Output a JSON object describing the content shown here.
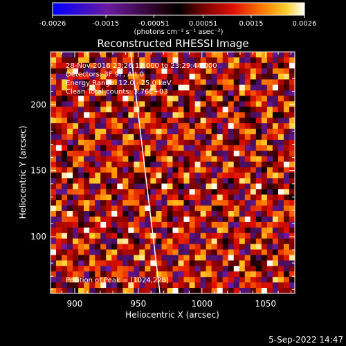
{
  "chart_data": {
    "type": "heatmap",
    "title": "Reconstructed RHESSI Image",
    "xlabel": "Heliocentric X (arcsec)",
    "ylabel": "Heliocentric Y (arcsec)",
    "xlim": [
      881,
      1073
    ],
    "ylim": [
      57,
      240
    ],
    "x_ticks": [
      900,
      950,
      1000,
      1050
    ],
    "y_ticks": [
      100,
      150,
      200
    ],
    "colorbar": {
      "range": [
        -0.0026,
        0.0026
      ],
      "tick_values": [
        -0.0026,
        -0.0015,
        -0.00051,
        0.00051,
        0.0015,
        0.0026
      ],
      "tick_labels": [
        "-0.0026",
        "-0.0015",
        "-0.00051",
        "0.00051",
        "0.0015",
        "0.0026"
      ],
      "unit_label": "(photons cm⁻² s⁻¹ asec⁻²)"
    },
    "annotations": [
      "28-Nov-2016 23:26:12.000 to 23:29:44.000",
      "Detectors: 3F 9F, Att 0",
      "Energy Range: 12.0 - 25.0 keV",
      "Clean     Total counts: 3.76E+03"
    ],
    "peak_label": "Position of Peak = [1024,228]",
    "limb_line": [
      [
        944,
        240
      ],
      [
        967,
        57
      ]
    ],
    "colors": {
      "scale_low": "#0000ff",
      "scale_mid": "#000000",
      "scale_high": "#ffffff",
      "limb": "#ffffff"
    }
  },
  "footer": {
    "timestamp": "5-Sep-2022 14:47"
  }
}
